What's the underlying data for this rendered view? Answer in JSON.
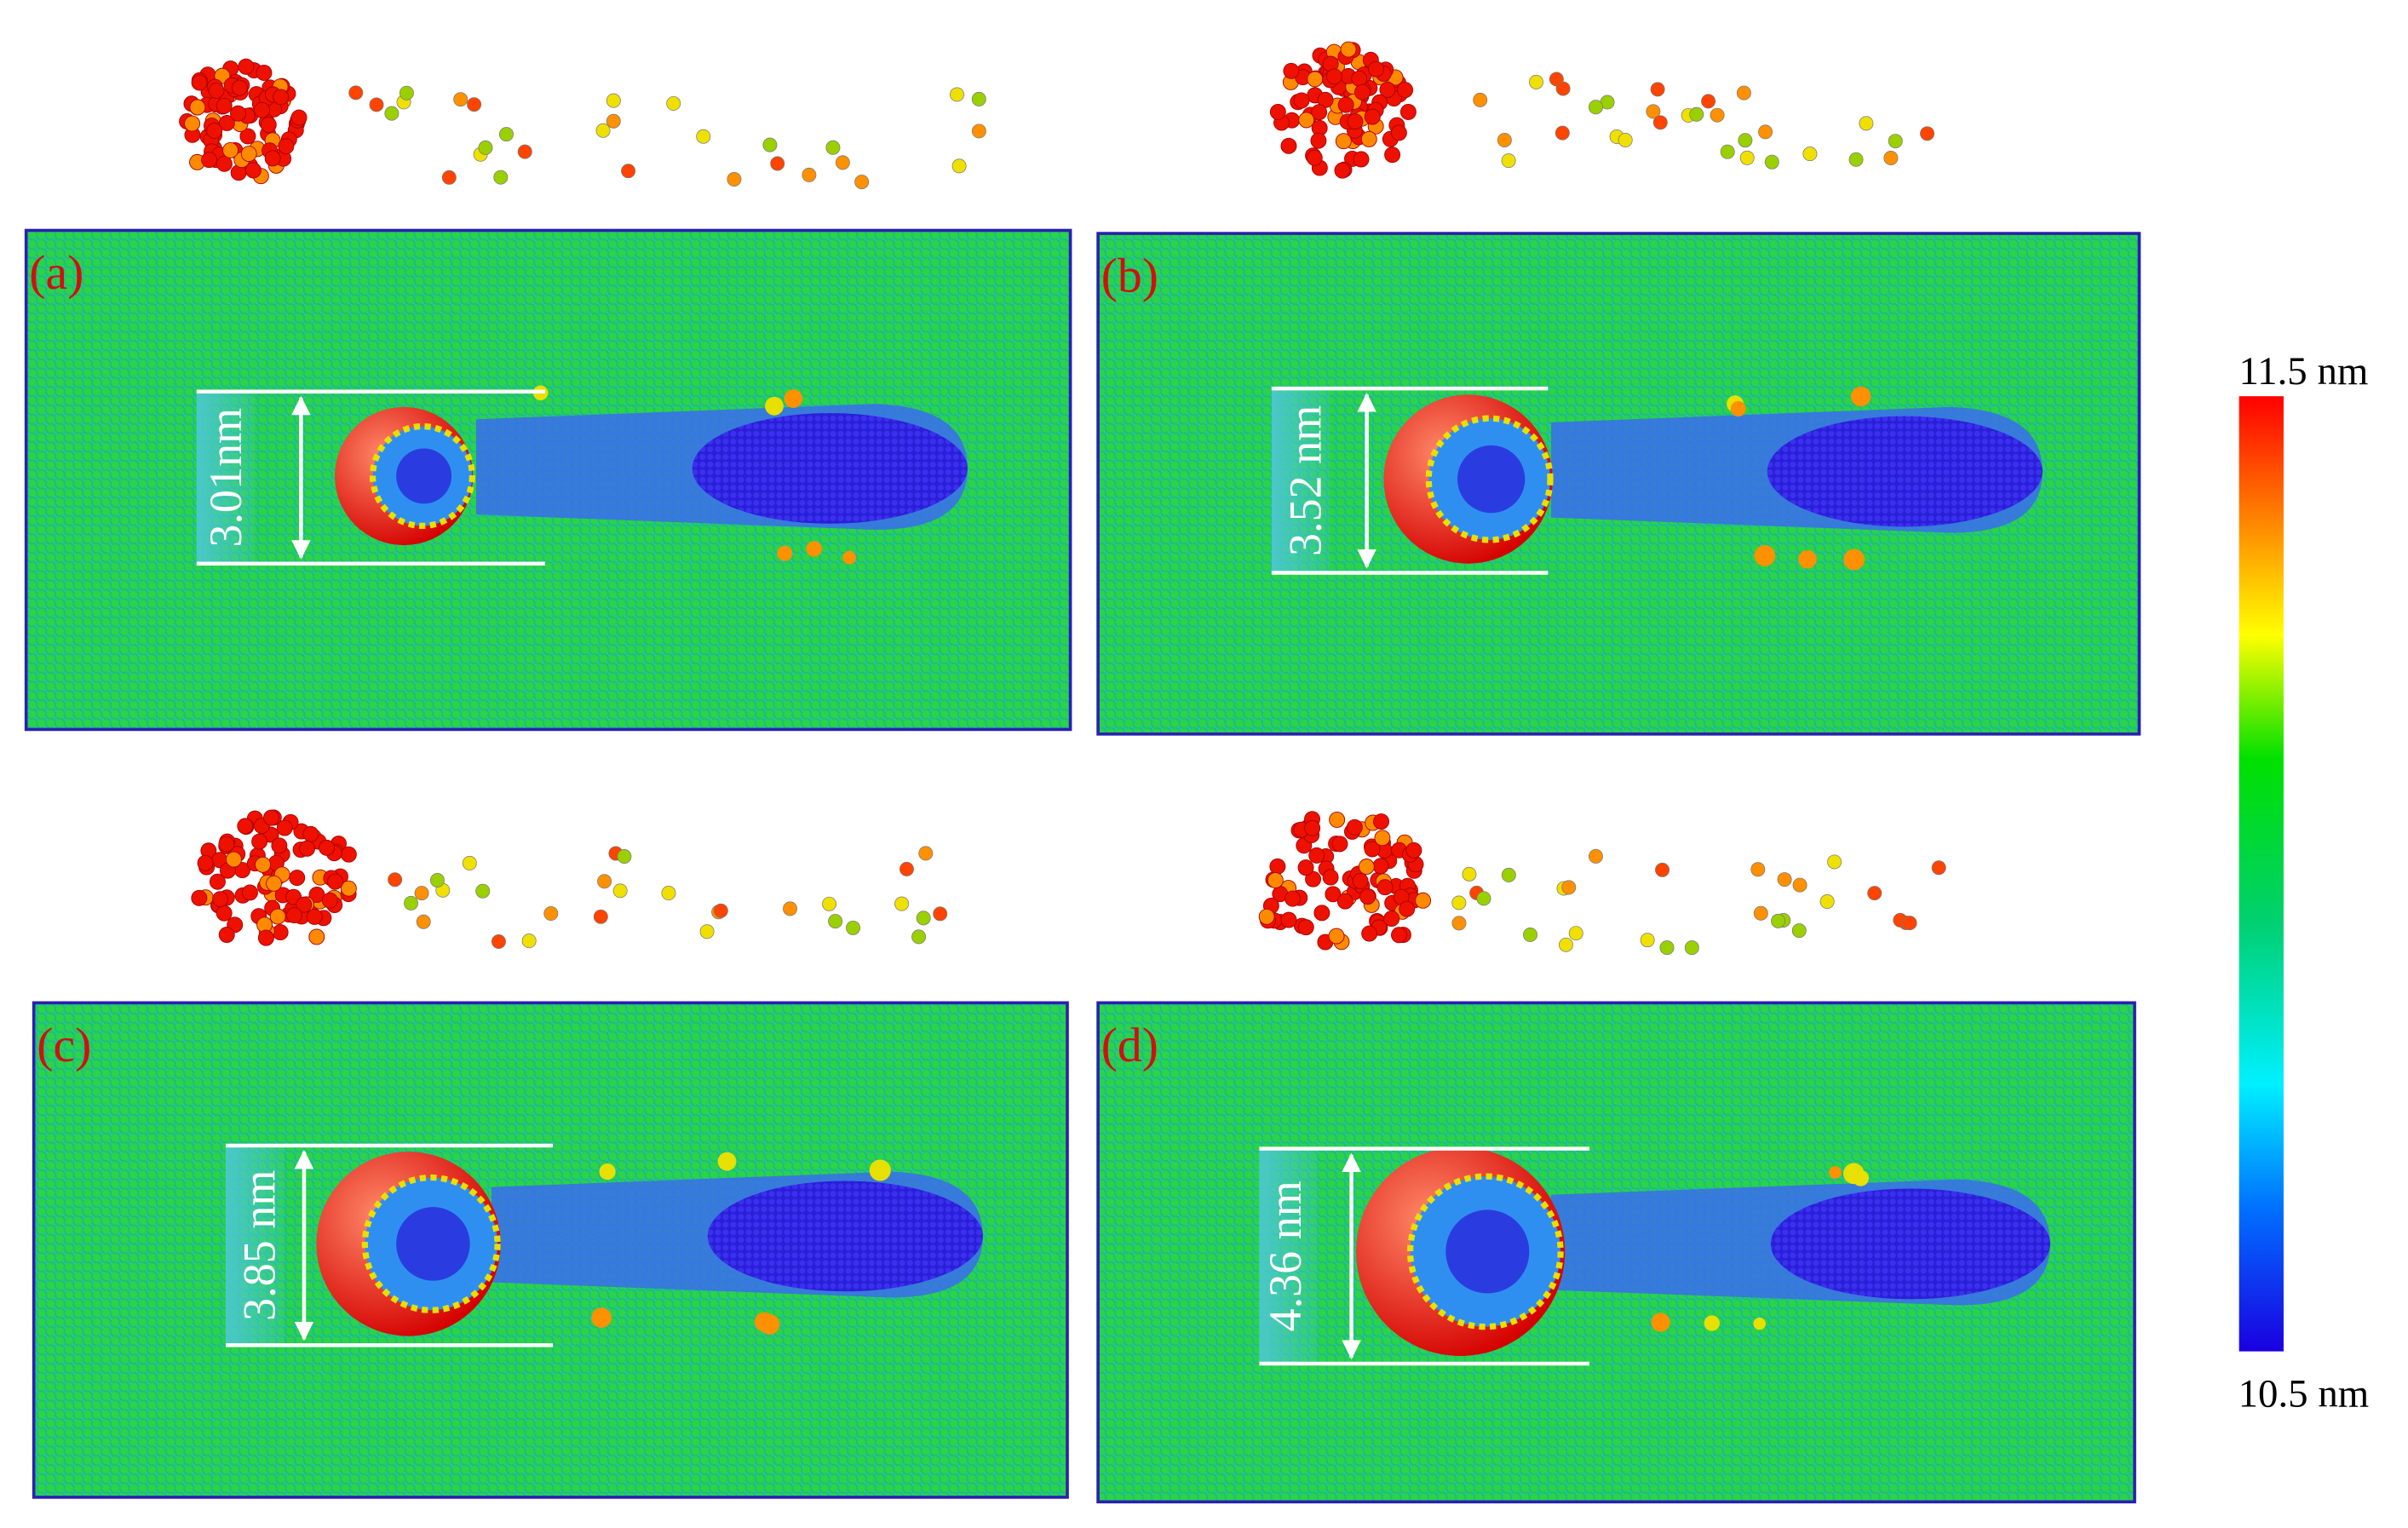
{
  "panels": [
    {
      "label": "(a)",
      "measurement": "3.01nm"
    },
    {
      "label": "(b)",
      "measurement": "3.52 nm"
    },
    {
      "label": "(c)",
      "measurement": "3.85 nm"
    },
    {
      "label": "(d)",
      "measurement": "4.36 nm"
    }
  ],
  "colorbar": {
    "max_label": "11.5 nm",
    "min_label": "10.5 nm"
  }
}
